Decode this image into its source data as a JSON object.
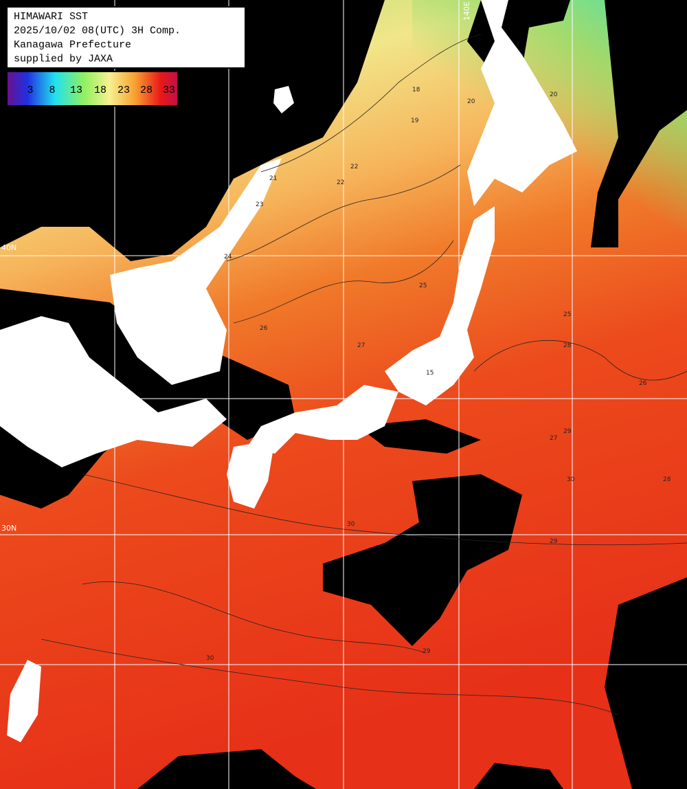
{
  "header": {
    "lines": [
      "HIMAWARI SST",
      "2025/10/02 08(UTC) 3H Comp.",
      "Kanagawa Prefecture",
      "supplied by JAXA"
    ]
  },
  "colorbar": {
    "ticks": [
      3,
      8,
      13,
      18,
      23,
      28,
      33
    ]
  },
  "grid_labels": [
    "140E",
    "40N",
    "30N"
  ],
  "contour_labels": [
    "18",
    "19",
    "20",
    "21",
    "22",
    "23",
    "24",
    "25",
    "26",
    "27",
    "28",
    "29",
    "30",
    "15",
    "20",
    "22",
    "25",
    "26",
    "27",
    "28",
    "29",
    "30",
    "29",
    "30"
  ]
}
